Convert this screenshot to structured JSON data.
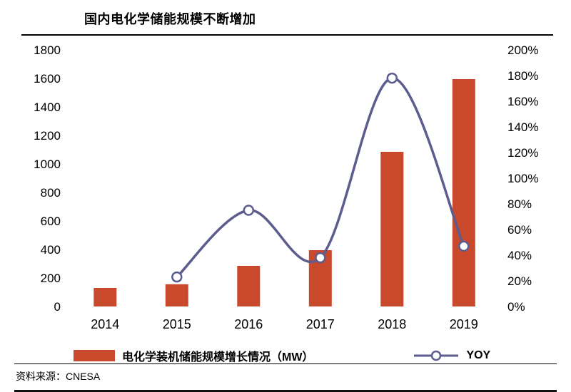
{
  "title": "国内电化学储能规模不断增加",
  "footer": {
    "source": "资料来源：CNESA"
  },
  "legend": {
    "bars_label": "电化学装机储能规模增长情况（MW）",
    "line_label": "YOY"
  },
  "colors": {
    "bar": "#C9492C",
    "line": "#5C5C8E",
    "marker_fill": "#FFFFFF"
  },
  "chart_data": {
    "type": "bar+line",
    "categories": [
      "2014",
      "2015",
      "2016",
      "2017",
      "2018",
      "2019"
    ],
    "series": [
      {
        "name": "电化学装机储能规模增长情况（MW）",
        "type": "bar",
        "axis": "left",
        "values": [
          130,
          156,
          285,
          395,
          1085,
          1595
        ]
      },
      {
        "name": "YOY",
        "type": "line",
        "axis": "right",
        "unit": "%",
        "values": [
          null,
          23,
          75,
          38,
          178,
          47
        ]
      }
    ],
    "left_axis": {
      "min": 0,
      "max": 1800,
      "step": 200,
      "ticks": [
        "0",
        "200",
        "400",
        "600",
        "800",
        "1000",
        "1200",
        "1400",
        "1600",
        "1800"
      ]
    },
    "right_axis": {
      "min": 0,
      "max": 200,
      "step": 20,
      "ticks": [
        "0%",
        "20%",
        "40%",
        "60%",
        "80%",
        "100%",
        "120%",
        "140%",
        "160%",
        "180%",
        "200%"
      ]
    },
    "grid": false,
    "legend_position": "bottom"
  }
}
